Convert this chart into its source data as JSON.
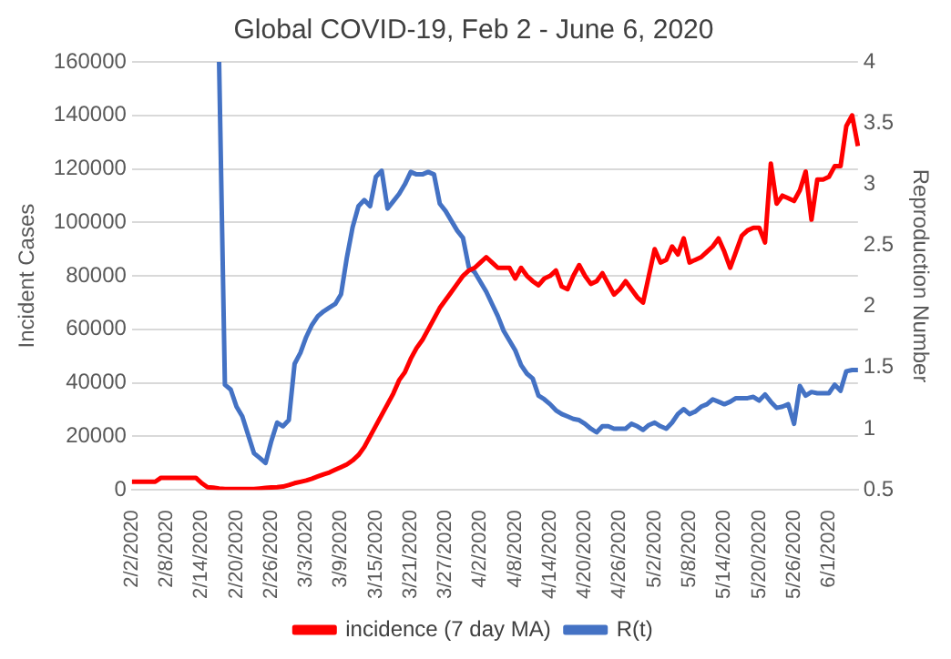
{
  "chart_data": {
    "type": "line",
    "title": "Global COVID-19, Feb 2 - June 6, 2020",
    "ylabel": "Incident Cases",
    "y2label": "Reproduction Number",
    "categories": [
      "2/2/2020",
      null,
      null,
      null,
      null,
      null,
      "2/8/2020",
      null,
      null,
      null,
      null,
      null,
      "2/14/2020",
      null,
      null,
      null,
      null,
      null,
      "2/20/2020",
      null,
      null,
      null,
      null,
      null,
      "2/26/2020",
      null,
      null,
      null,
      null,
      null,
      "3/3/2020",
      null,
      null,
      null,
      null,
      null,
      "3/9/2020",
      null,
      null,
      null,
      null,
      null,
      "3/15/2020",
      null,
      null,
      null,
      null,
      null,
      "3/21/2020",
      null,
      null,
      null,
      null,
      null,
      "3/27/2020",
      null,
      null,
      null,
      null,
      null,
      "4/2/2020",
      null,
      null,
      null,
      null,
      null,
      "4/8/2020",
      null,
      null,
      null,
      null,
      null,
      "4/14/2020",
      null,
      null,
      null,
      null,
      null,
      "4/20/2020",
      null,
      null,
      null,
      null,
      null,
      "4/26/2020",
      null,
      null,
      null,
      null,
      null,
      "5/2/2020",
      null,
      null,
      null,
      null,
      null,
      "5/8/2020",
      null,
      null,
      null,
      null,
      null,
      "5/14/2020",
      null,
      null,
      null,
      null,
      null,
      "5/20/2020",
      null,
      null,
      null,
      null,
      null,
      "5/26/2020",
      null,
      null,
      null,
      null,
      null,
      "6/1/2020",
      null,
      null,
      null,
      null,
      null
    ],
    "series": [
      {
        "name": "incidence (7 day MA)",
        "color": "#ff0000",
        "values": [
          3000,
          3000,
          3000,
          3000,
          3000,
          4500,
          4500,
          4500,
          4500,
          4500,
          4500,
          4500,
          2500,
          1000,
          800,
          500,
          300,
          300,
          300,
          300,
          300,
          300,
          500,
          700,
          900,
          1000,
          1200,
          1800,
          2500,
          3000,
          3500,
          4200,
          5000,
          5800,
          6500,
          7500,
          8500,
          9500,
          11000,
          13000,
          16000,
          20000,
          24000,
          28000,
          32000,
          36000,
          41000,
          44000,
          49000,
          53000,
          56000,
          60000,
          64000,
          68000,
          71000,
          74000,
          77000,
          80000,
          82000,
          83000,
          85000,
          87000,
          85000,
          83000,
          83000,
          83000,
          79000,
          83000,
          80000,
          78000,
          76500,
          79000,
          80000,
          82000,
          76000,
          75000,
          80000,
          84000,
          80000,
          77000,
          78000,
          81000,
          77000,
          73000,
          75000,
          78000,
          75000,
          72000,
          70000,
          80000,
          90000,
          85000,
          86000,
          91000,
          88000,
          94000,
          85000,
          86000,
          87000,
          89000,
          91000,
          94000,
          89000,
          83000,
          89000,
          95000,
          97000,
          98000,
          98000,
          92500,
          122000,
          107000,
          110000,
          109000,
          108000,
          112000,
          119000,
          101000,
          116000,
          116000,
          117000,
          121000,
          121000,
          136000,
          140000,
          128500
        ]
      },
      {
        "name": "R(t)",
        "color": "#4472c4",
        "axis": "y2",
        "values": [
          null,
          null,
          null,
          null,
          null,
          null,
          null,
          null,
          null,
          null,
          null,
          null,
          null,
          null,
          null,
          4,
          1.36,
          1.32,
          1.18,
          1.1,
          0.95,
          0.8,
          0.76,
          0.72,
          0.9,
          1.05,
          1.02,
          1.07,
          1.53,
          1.62,
          1.75,
          1.85,
          1.92,
          1.96,
          1.99,
          2.02,
          2.1,
          2.4,
          2.65,
          2.82,
          2.87,
          2.82,
          3.06,
          3.11,
          2.8,
          2.86,
          2.92,
          3.0,
          3.1,
          3.08,
          3.08,
          3.1,
          3.08,
          2.84,
          2.78,
          2.7,
          2.62,
          2.56,
          2.32,
          2.28,
          2.2,
          2.12,
          2.02,
          1.92,
          1.8,
          1.72,
          1.64,
          1.52,
          1.45,
          1.41,
          1.27,
          1.24,
          1.2,
          1.15,
          1.12,
          1.1,
          1.08,
          1.07,
          1.04,
          1.0,
          0.97,
          1.02,
          1.02,
          1.0,
          1.0,
          1.0,
          1.04,
          1.02,
          0.99,
          1.03,
          1.05,
          1.02,
          1.0,
          1.05,
          1.12,
          1.16,
          1.12,
          1.14,
          1.18,
          1.2,
          1.24,
          1.22,
          1.2,
          1.22,
          1.25,
          1.25,
          1.25,
          1.26,
          1.23,
          1.28,
          1.22,
          1.17,
          1.18,
          1.2,
          1.04,
          1.35,
          1.27,
          1.3,
          1.29,
          1.29,
          1.29,
          1.36,
          1.31,
          1.47,
          1.48,
          1.48
        ]
      }
    ],
    "ylim": [
      0,
      160000
    ],
    "yticks": [
      0,
      20000,
      40000,
      60000,
      80000,
      100000,
      120000,
      140000,
      160000
    ],
    "y2lim": [
      0.5,
      4
    ],
    "y2ticks": [
      0.5,
      1,
      1.5,
      2,
      2.5,
      3,
      3.5,
      4
    ],
    "grid": "y",
    "legend": "bottom",
    "marker": "none",
    "line_style": "solid"
  }
}
